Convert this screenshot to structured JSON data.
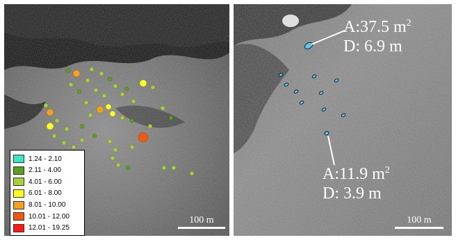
{
  "left_panel": {
    "legend": {
      "items": [
        {
          "label": "1.24 - 2.10",
          "color": "#3ee6c8"
        },
        {
          "label": "2.11 - 4.00",
          "color": "#5aa01e"
        },
        {
          "label": "4.01 - 6.00",
          "color": "#a6d234"
        },
        {
          "label": "6.01 - 8.00",
          "color": "#ffff22"
        },
        {
          "label": "8.01 - 10.00",
          "color": "#f7a11a"
        },
        {
          "label": "10.01 - 12.00",
          "color": "#ef5a10"
        },
        {
          "label": "12.01 - 19.25",
          "color": "#ff1a10"
        }
      ]
    },
    "scale_label": "100 m"
  },
  "right_panel": {
    "annotation_top": {
      "area": "A:37.5 m",
      "area_exp": "2",
      "diameter": "D: 6.9 m"
    },
    "annotation_bottom": {
      "area": "A:11.9 m",
      "area_exp": "2",
      "diameter": "D: 3.9 m"
    },
    "scale_label": "100 m",
    "highlight_color": "#5fc6f0"
  }
}
